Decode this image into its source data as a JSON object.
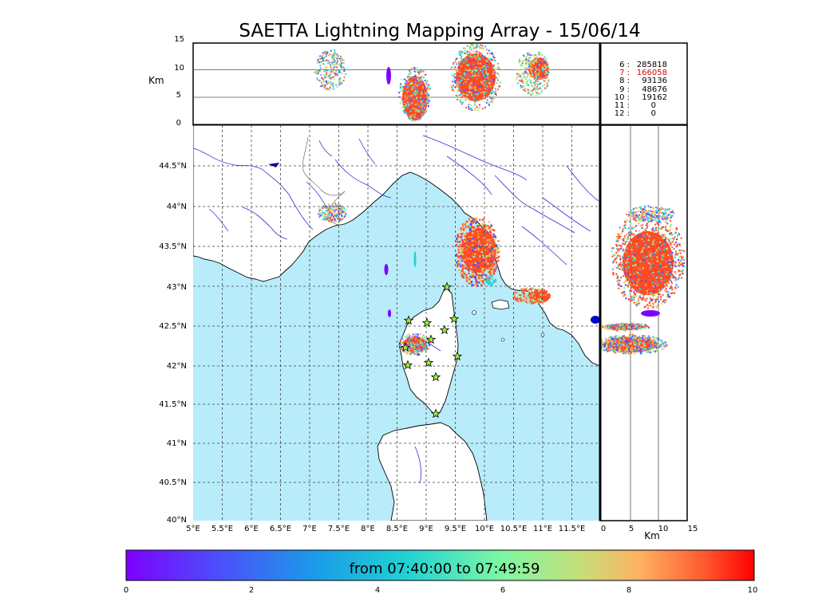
{
  "title": "SAETTA Lightning Mapping Array - 15/06/14",
  "top_panel": {
    "ylabel": "Km",
    "yticks": [
      "15",
      "10",
      "5",
      "0"
    ],
    "stations_table": [
      {
        "n": "6 :",
        "v": "285818",
        "highlight": false
      },
      {
        "n": "7 :",
        "v": "166058",
        "highlight": true
      },
      {
        "n": "8 :",
        "v": "93136",
        "highlight": false
      },
      {
        "n": "9 :",
        "v": "48676",
        "highlight": false
      },
      {
        "n": "10 :",
        "v": "19162",
        "highlight": false
      },
      {
        "n": "11 :",
        "v": "0",
        "highlight": false
      },
      {
        "n": "12 :",
        "v": "0",
        "highlight": false
      }
    ],
    "highlight_color": "#e00000"
  },
  "map": {
    "lon_ticks": [
      "5°E",
      "5.5°E",
      "6°E",
      "6.5°E",
      "7°E",
      "7.5°E",
      "8°E",
      "8.5°E",
      "9°E",
      "9.5°E",
      "10°E",
      "10.5°E",
      "11°E",
      "11.5°E"
    ],
    "lat_ticks": [
      "44.5°N",
      "44°N",
      "43.5°N",
      "43°N",
      "42.5°N",
      "42°N",
      "41.5°N",
      "41°N",
      "40.5°N",
      "40°N"
    ],
    "sea_color": "#b8ecfa",
    "land_color": "#ffffff"
  },
  "right_panel": {
    "xlabel": "Km",
    "xticks": [
      "0",
      "5",
      "10",
      "15"
    ]
  },
  "colorbar": {
    "label": "from 07:40:00 to 07:49:59",
    "ticks": [
      "0",
      "2",
      "4",
      "6",
      "8",
      "10"
    ]
  }
}
